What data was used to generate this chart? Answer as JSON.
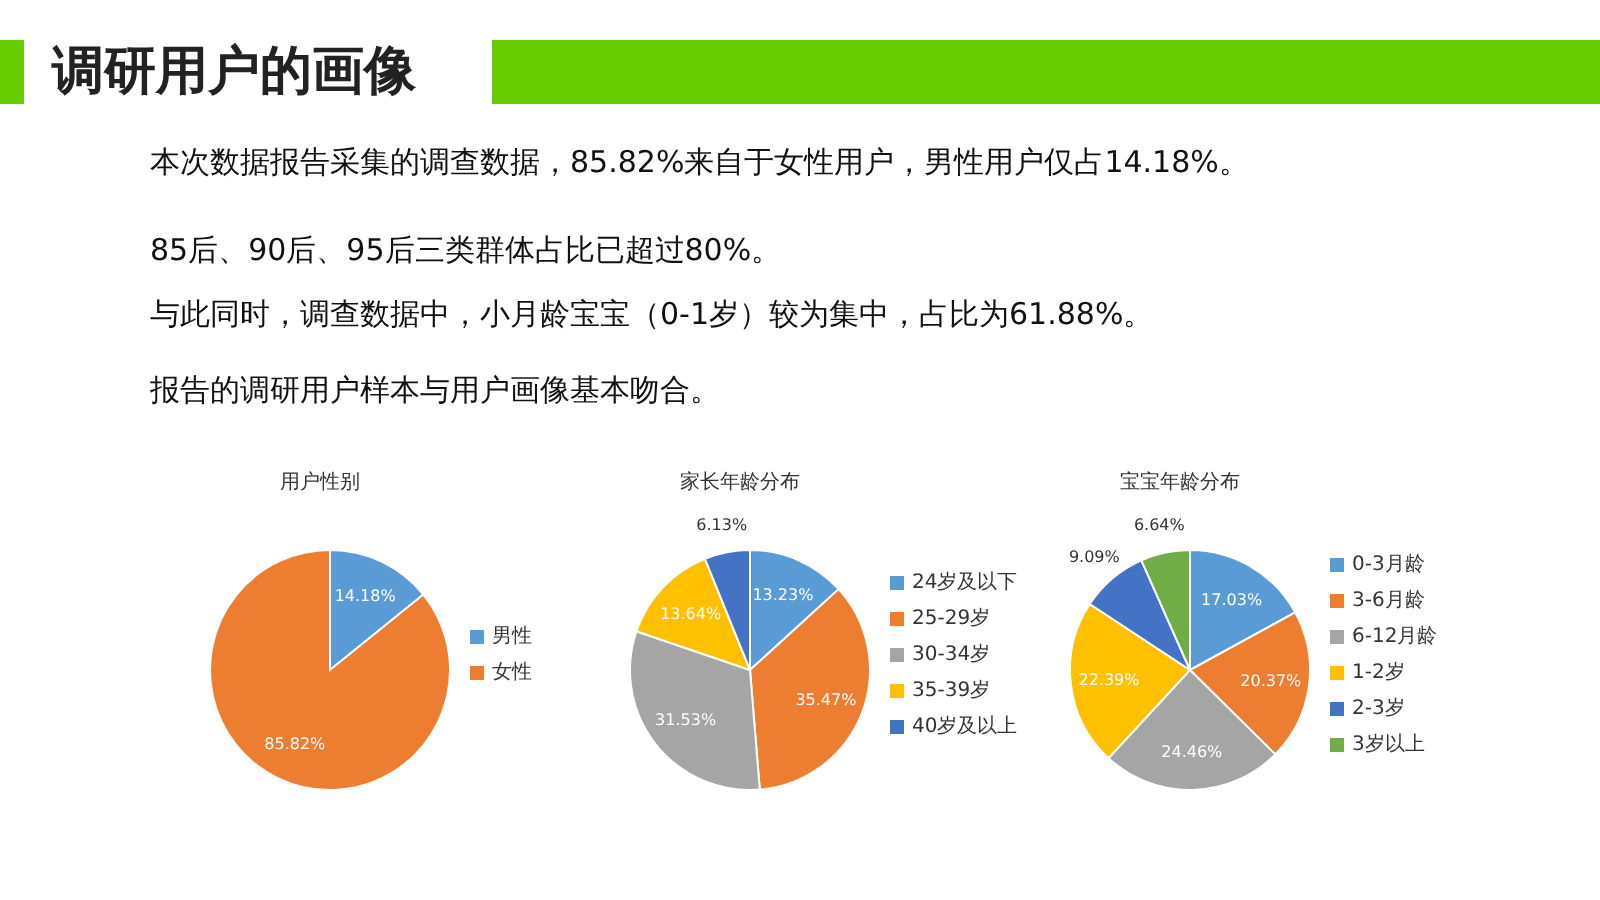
{
  "chart_data": [
    {
      "type": "other",
      "title": "调研用户的画像",
      "annotations": [
        "本次数据报告采集的调查数据，85.82%来自于女性用户，男性用户仅占14.18%。",
        "85后、90后、95后三类群体占比已超过80%。",
        "与此同时，调查数据中，小月龄宝宝（0-1岁）较为集中，占比为61.88%。",
        "报告的调研用户样本与用户画像基本吻合。"
      ]
    },
    {
      "type": "pie",
      "title": "用户性别",
      "categories": [
        "男性",
        "女性"
      ],
      "values": [
        14.18,
        85.82
      ],
      "colors": [
        "#5b9bd5",
        "#ed7d31"
      ],
      "value_labels": [
        "14.18%",
        "85.82%"
      ],
      "legend": "right"
    },
    {
      "type": "pie",
      "title": "家长年龄分布",
      "categories": [
        "24岁及以下",
        "25-29岁",
        "30-34岁",
        "35-39岁",
        "40岁及以上"
      ],
      "values": [
        13.23,
        35.47,
        31.53,
        13.64,
        6.13
      ],
      "colors": [
        "#5b9bd5",
        "#ed7d31",
        "#a5a5a5",
        "#ffc000",
        "#4472c4"
      ],
      "value_labels": [
        "13.23%",
        "35.47%",
        "31.53%",
        "13.64%",
        "6.13%"
      ],
      "legend": "right"
    },
    {
      "type": "pie",
      "title": "宝宝年龄分布",
      "categories": [
        "0-3月龄",
        "3-6月龄",
        "6-12月龄",
        "1-2岁",
        "2-3岁",
        "3岁以上"
      ],
      "values": [
        17.03,
        20.37,
        24.46,
        22.39,
        9.09,
        6.64
      ],
      "colors": [
        "#5b9bd5",
        "#ed7d31",
        "#a5a5a5",
        "#ffc000",
        "#4472c4",
        "#70ad47"
      ],
      "value_labels": [
        "17.03%",
        "20.37%",
        "24.46%",
        "22.39%",
        "9.09%",
        "6.64%"
      ],
      "legend": "right"
    }
  ]
}
